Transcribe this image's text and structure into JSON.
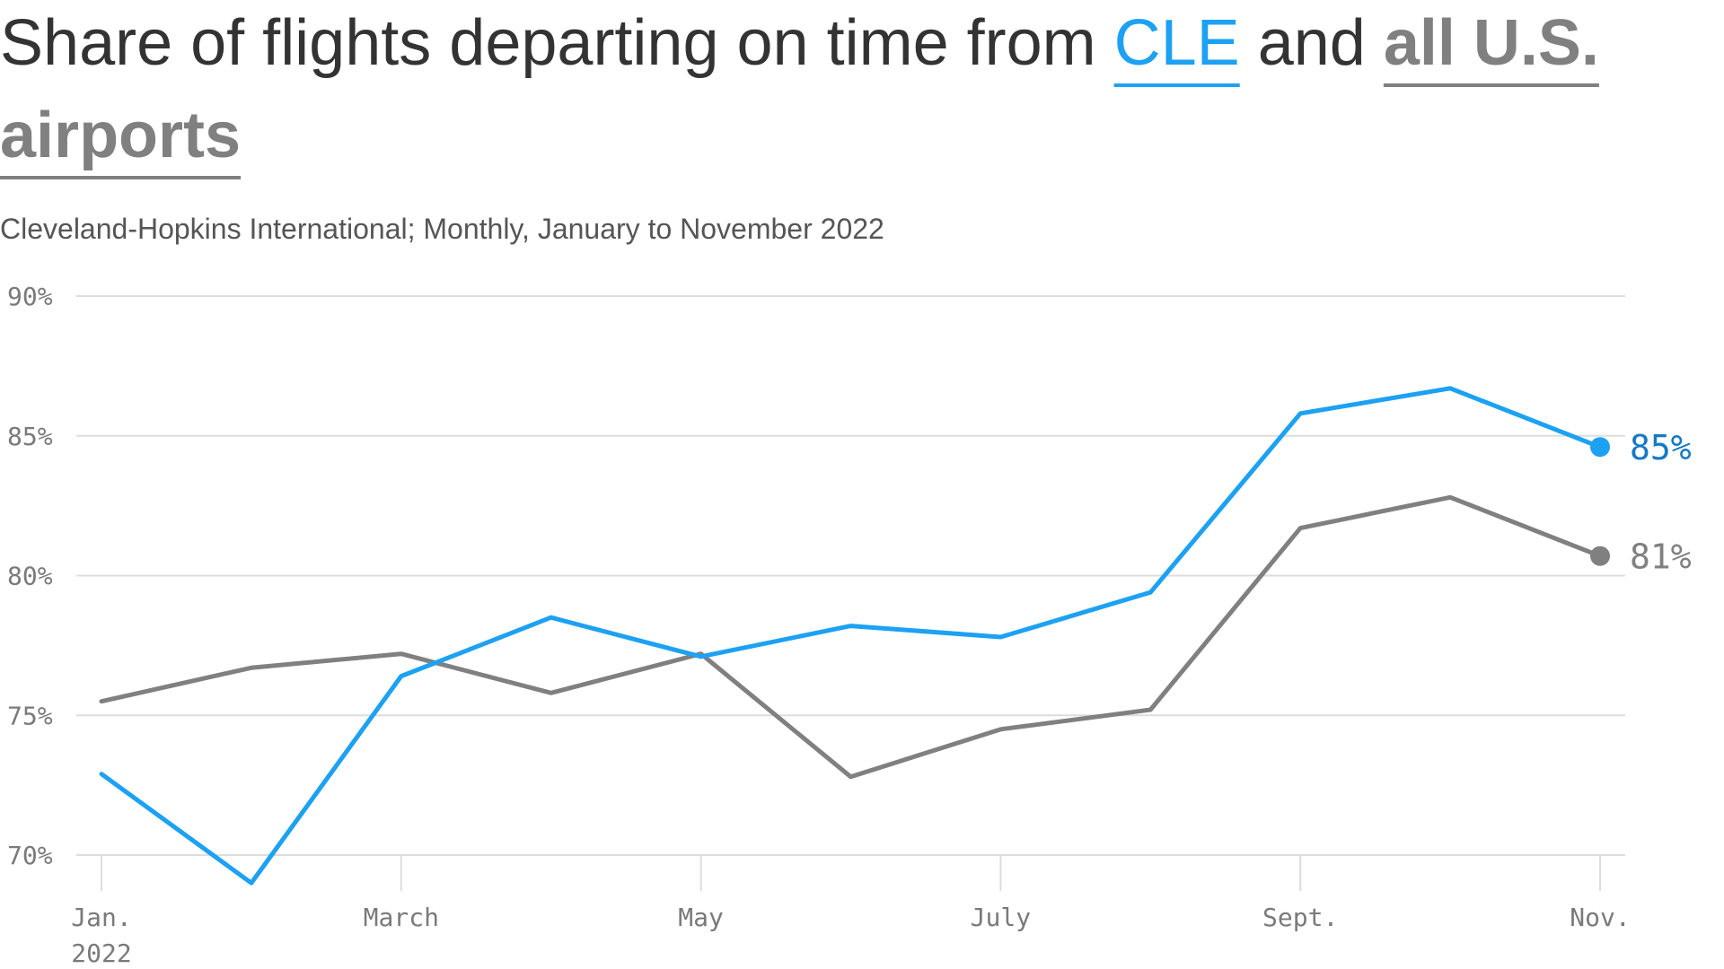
{
  "title": {
    "prefix": "Share of flights departing on time from ",
    "series_a": "CLE",
    "middle": " and ",
    "series_b": "all U.S. airports"
  },
  "subtitle": "Cleveland-Hopkins International; Monthly, January to November 2022",
  "colors": {
    "cle": "#1da1f2",
    "cle_label": "#1479c4",
    "us": "#808080",
    "grid": "#dddddd",
    "title": "#333333"
  },
  "chart_data": {
    "type": "line",
    "x": [
      "Jan. 2022",
      "Feb. 2022",
      "March 2022",
      "April 2022",
      "May 2022",
      "June 2022",
      "July 2022",
      "Aug. 2022",
      "Sept. 2022",
      "Oct. 2022",
      "Nov. 2022"
    ],
    "series": [
      {
        "name": "CLE",
        "key": "cle",
        "values": [
          72.9,
          69.0,
          76.4,
          78.5,
          77.1,
          78.2,
          77.8,
          79.4,
          85.8,
          86.7,
          84.6
        ],
        "end_label": "85%"
      },
      {
        "name": "all U.S. airports",
        "key": "us",
        "values": [
          75.5,
          76.7,
          77.2,
          75.8,
          77.2,
          72.8,
          74.5,
          75.2,
          81.7,
          82.8,
          80.7
        ],
        "end_label": "81%"
      }
    ],
    "ylim": [
      70,
      90
    ],
    "yticks": [
      90,
      85,
      80,
      75,
      70
    ],
    "ytick_labels": [
      "90%",
      "85%",
      "80%",
      "75%",
      "70%"
    ],
    "xticks": [
      {
        "index": 0,
        "label": "Jan.",
        "sublabel": "2022"
      },
      {
        "index": 2,
        "label": "March"
      },
      {
        "index": 4,
        "label": "May"
      },
      {
        "index": 6,
        "label": "July"
      },
      {
        "index": 8,
        "label": "Sept."
      },
      {
        "index": 10,
        "label": "Nov."
      }
    ],
    "grid": true,
    "xlabel": "",
    "ylabel": ""
  }
}
